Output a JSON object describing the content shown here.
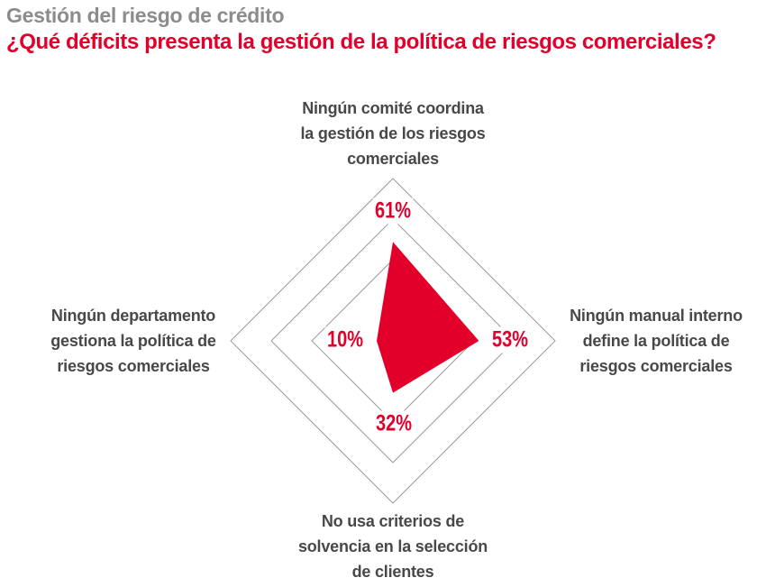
{
  "header": {
    "title": "Gestión del riesgo de crédito",
    "subtitle": "¿Qué déficits presenta la gestión de la política de riesgos comerciales?"
  },
  "colors": {
    "accent_red": "#e2002b",
    "title_gray": "#8c8c8c",
    "label_gray": "#484848",
    "grid_gray": "#9b9b9b"
  },
  "chart_data": {
    "type": "radar",
    "shape": "diamond-4-axis",
    "max_pct": 100,
    "rings_pct": [
      50,
      75,
      100
    ],
    "grid": "on",
    "legend": "none",
    "axes": [
      {
        "position": "top",
        "label": "Ningún comité coordina la gestión de los riesgos comerciales",
        "label_lines": [
          "Ningún comité coordina",
          "la gestión de los riesgos",
          "comerciales"
        ],
        "value": 61,
        "value_label": "61%"
      },
      {
        "position": "right",
        "label": "Ningún manual interno define la política de riesgos comerciales",
        "label_lines": [
          "Ningún manual interno",
          "define la política de",
          "riesgos comerciales"
        ],
        "value": 53,
        "value_label": "53%"
      },
      {
        "position": "bottom",
        "label": "No usa criterios de solvencia en la selección de clientes",
        "label_lines": [
          "No usa criterios de",
          "solvencia en la selección",
          "de clientes"
        ],
        "value": 32,
        "value_label": "32%"
      },
      {
        "position": "left",
        "label": "Ningún departamento gestiona la política de riesgos comerciales",
        "label_lines": [
          "Ningún departamento",
          "gestiona la política de",
          "riesgos comerciales"
        ],
        "value": 10,
        "value_label": "10%"
      }
    ]
  }
}
